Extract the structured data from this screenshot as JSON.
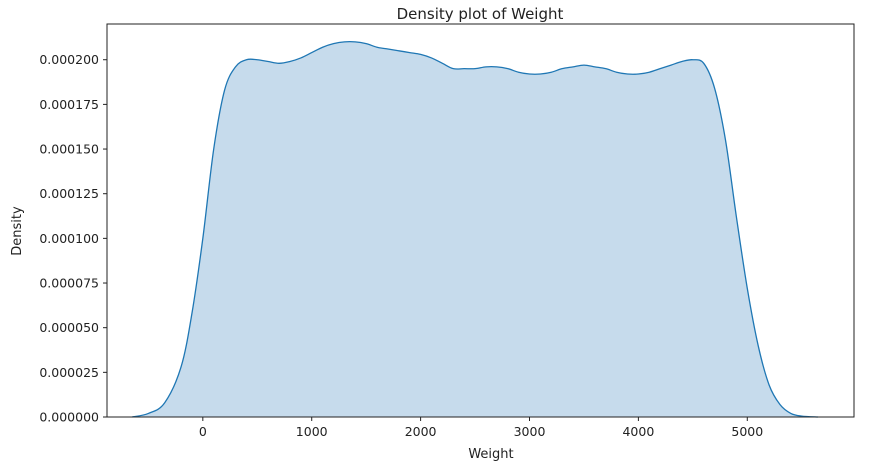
{
  "chart_data": {
    "type": "area",
    "title": "Density plot of Weight",
    "xlabel": "Weight",
    "ylabel": "Density",
    "xlim": [
      -880,
      5980
    ],
    "ylim": [
      0,
      0.00022
    ],
    "xticks": [
      0,
      1000,
      2000,
      3000,
      4000,
      5000
    ],
    "xtick_labels": [
      "0",
      "1000",
      "2000",
      "3000",
      "4000",
      "5000"
    ],
    "yticks": [
      0,
      2.5e-05,
      5e-05,
      7.5e-05,
      0.0001,
      0.000125,
      0.00015,
      0.000175,
      0.0002
    ],
    "ytick_labels": [
      "0.000000",
      "0.000025",
      "0.000050",
      "0.000075",
      "0.000100",
      "0.000125",
      "0.000150",
      "0.000175",
      "0.000200"
    ],
    "grid": false,
    "x": [
      -650,
      -500,
      -350,
      -200,
      -100,
      0,
      100,
      200,
      300,
      400,
      500,
      600,
      700,
      800,
      900,
      1000,
      1100,
      1200,
      1300,
      1400,
      1500,
      1600,
      1700,
      1800,
      1900,
      2000,
      2100,
      2200,
      2300,
      2400,
      2500,
      2600,
      2700,
      2800,
      2900,
      3000,
      3100,
      3200,
      3300,
      3400,
      3500,
      3600,
      3700,
      3800,
      3900,
      4000,
      4100,
      4200,
      4300,
      4400,
      4500,
      4600,
      4700,
      4800,
      4900,
      5000,
      5100,
      5200,
      5300,
      5400,
      5500,
      5650
    ],
    "y": [
      0.0,
      2e-06,
      8e-06,
      2.8e-05,
      5.8e-05,
      0.0001,
      0.00015,
      0.000183,
      0.000196,
      0.0002,
      0.0002,
      0.000199,
      0.000198,
      0.000199,
      0.000201,
      0.000204,
      0.000207,
      0.000209,
      0.00021,
      0.00021,
      0.000209,
      0.000207,
      0.000206,
      0.000205,
      0.000204,
      0.000203,
      0.000201,
      0.000198,
      0.000195,
      0.000195,
      0.000195,
      0.000196,
      0.000196,
      0.000195,
      0.000193,
      0.000192,
      0.000192,
      0.000193,
      0.000195,
      0.000196,
      0.000197,
      0.000196,
      0.000195,
      0.000193,
      0.000192,
      0.000192,
      0.000193,
      0.000195,
      0.000197,
      0.000199,
      0.0002,
      0.000198,
      0.000184,
      0.000155,
      0.000112,
      7.2e-05,
      4e-05,
      1.8e-05,
      7e-06,
      2e-06,
      5e-07,
      0.0
    ],
    "colors": {
      "line": "#1f77b4",
      "fill": "#c6dbec",
      "axis": "#222222"
    }
  }
}
